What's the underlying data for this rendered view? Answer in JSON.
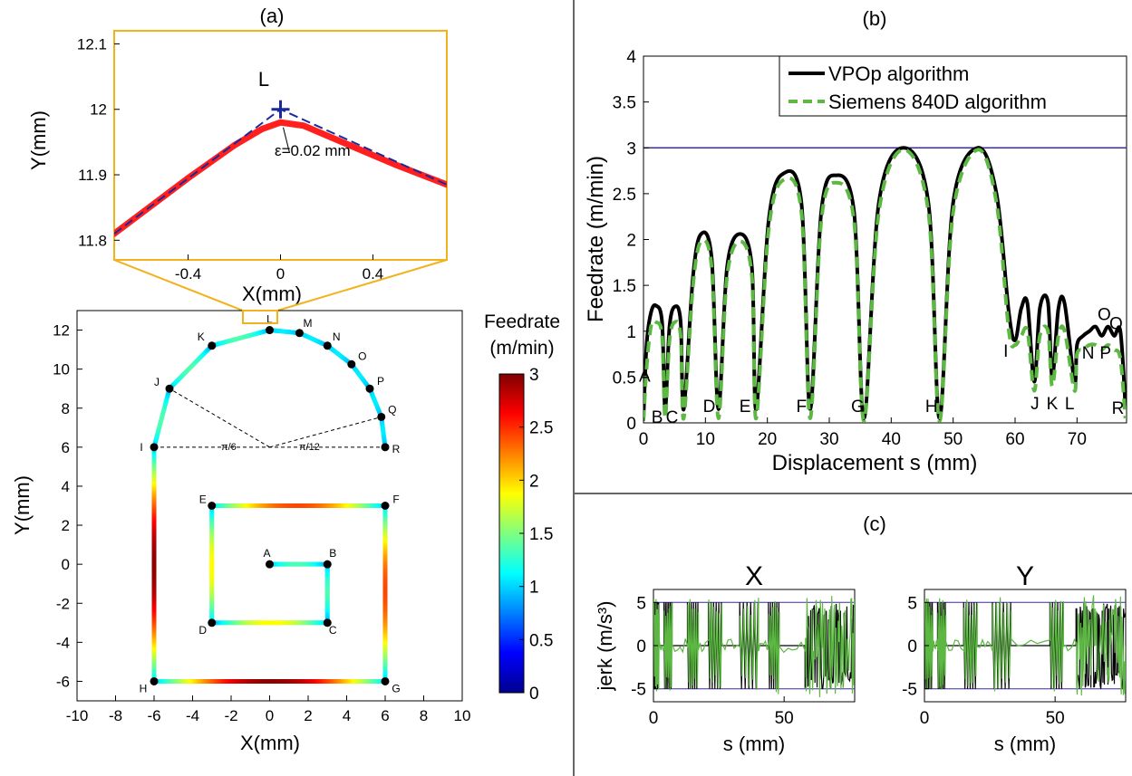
{
  "panels": {
    "a": "(a)",
    "b": "(b)",
    "c": "(c)"
  },
  "colors": {
    "colormap": [
      "#00008f",
      "#0000ff",
      "#0080ff",
      "#00ffff",
      "#80ff80",
      "#ffff00",
      "#ff8000",
      "#ff0000",
      "#800000"
    ],
    "path_hi": "#8b3a3a",
    "vpop": "#000000",
    "siemens": "#5cb843",
    "limit": "#3b2f8f",
    "zoom_box": "#f2b21d",
    "mark": "#1b2a9a",
    "red": "#ff1f1f"
  },
  "chart_data": [
    {
      "id": "a_zoom",
      "type": "line",
      "xlabel": "X(mm)",
      "ylabel": "Y(mm)",
      "xlim": [
        -0.72,
        0.72
      ],
      "ylim": [
        11.77,
        12.12
      ],
      "xticks": [
        "-0.4",
        "0",
        "0.4"
      ],
      "xtick_values": [
        -0.4,
        0,
        0.4
      ],
      "yticks": [
        "11.8",
        "11.9",
        "12",
        "12.1"
      ],
      "ytick_values": [
        11.8,
        11.9,
        12.0,
        12.1
      ],
      "point_label": "L",
      "point": [
        0,
        12.0
      ],
      "annotation": "ε=0.02 mm",
      "series": [
        {
          "role": "programmed",
          "x": [
            -0.72,
            0,
            0.72
          ],
          "y": [
            11.81,
            12.0,
            11.885
          ]
        },
        {
          "role": "smoothed",
          "x": [
            -0.72,
            -0.4,
            -0.2,
            -0.08,
            0,
            0.1,
            0.3,
            0.5,
            0.72
          ],
          "y": [
            11.81,
            11.895,
            11.945,
            11.97,
            11.98,
            11.975,
            11.945,
            11.915,
            11.885
          ]
        }
      ]
    },
    {
      "id": "a_path",
      "type": "scatter",
      "xlabel": "X(mm)",
      "ylabel": "Y(mm)",
      "xlim": [
        -10,
        10
      ],
      "ylim": [
        -7,
        13
      ],
      "xticks": [
        "-10",
        "-8",
        "-6",
        "-4",
        "-2",
        "0",
        "2",
        "4",
        "6",
        "8",
        "10"
      ],
      "xtick_values": [
        -10,
        -8,
        -6,
        -4,
        -2,
        0,
        2,
        4,
        6,
        8,
        10
      ],
      "yticks": [
        "12",
        "10",
        "8",
        "6",
        "4",
        "2",
        "0",
        "-2",
        "-4",
        "-6"
      ],
      "ytick_values": [
        12,
        10,
        8,
        6,
        4,
        2,
        0,
        -2,
        -4,
        -6
      ],
      "points": [
        {
          "label": "A",
          "x": 0,
          "y": 0,
          "v": 0.9
        },
        {
          "label": "B",
          "x": 3,
          "y": 0,
          "v": 0.9
        },
        {
          "label": "C",
          "x": 3,
          "y": -3,
          "v": 0.9
        },
        {
          "label": "D",
          "x": -3,
          "y": -3,
          "v": 1.0
        },
        {
          "label": "E",
          "x": -3,
          "y": 3,
          "v": 1.0
        },
        {
          "label": "F",
          "x": 6,
          "y": 3,
          "v": 1.0
        },
        {
          "label": "G",
          "x": 6,
          "y": -6,
          "v": 1.0
        },
        {
          "label": "H",
          "x": -6,
          "y": -6,
          "v": 1.0
        },
        {
          "label": "I",
          "x": -6,
          "y": 6,
          "v": 0.9
        },
        {
          "label": "J",
          "x": -5.2,
          "y": 9.0,
          "v": 0.9
        },
        {
          "label": "K",
          "x": -3.0,
          "y": 11.2,
          "v": 0.9
        },
        {
          "label": "L",
          "x": 0,
          "y": 12.0,
          "v": 0.9
        },
        {
          "label": "M",
          "x": 1.55,
          "y": 11.85,
          "v": 0.9
        },
        {
          "label": "N",
          "x": 3.0,
          "y": 11.2,
          "v": 0.9
        },
        {
          "label": "O",
          "x": 4.25,
          "y": 10.25,
          "v": 0.9
        },
        {
          "label": "P",
          "x": 5.2,
          "y": 9.0,
          "v": 0.9
        },
        {
          "label": "Q",
          "x": 5.8,
          "y": 7.55,
          "v": 0.9
        },
        {
          "label": "R",
          "x": 6,
          "y": 6,
          "v": 0.9
        }
      ],
      "angle_labels": [
        "π/6",
        "π/12"
      ],
      "colorbar": {
        "title_line1": "Feedrate",
        "title_line2": "(m/min)",
        "ticks": [
          "3",
          "2.5",
          "2",
          "1.5",
          "1",
          "0.5",
          "0"
        ],
        "tick_values": [
          3,
          2.5,
          2,
          1.5,
          1,
          0.5,
          0
        ],
        "range": [
          0,
          3
        ]
      }
    },
    {
      "id": "b",
      "type": "line",
      "xlabel": "Displacement s (mm)",
      "ylabel": "Feedrate (m/min)",
      "xlim": [
        0,
        78
      ],
      "ylim": [
        0,
        4
      ],
      "xticks": [
        "0",
        "10",
        "20",
        "30",
        "40",
        "50",
        "60",
        "70"
      ],
      "xtick_values": [
        0,
        10,
        20,
        30,
        40,
        50,
        60,
        70
      ],
      "yticks": [
        "4",
        "3.5",
        "3",
        "2.5",
        "2",
        "1.5",
        "1",
        "0.5",
        "0"
      ],
      "ytick_values": [
        4,
        3.5,
        3,
        2.5,
        2,
        1.5,
        1,
        0.5,
        0
      ],
      "limit_line": 3,
      "legend": {
        "position": "top-right"
      },
      "series": [
        {
          "name": "VPOp algorithm",
          "style": "solid",
          "x": [
            0,
            0.5,
            1.2,
            2.0,
            3.0,
            3.5,
            4.2,
            5.1,
            6.0,
            6.5,
            8.0,
            9.3,
            11.0,
            12.1,
            13.5,
            15.6,
            17.5,
            18.2,
            20.2,
            22.6,
            25.5,
            26.9,
            28.7,
            31.0,
            34.0,
            35.6,
            38.0,
            42.0,
            46.0,
            47.8,
            50.0,
            54.0,
            57.0,
            59.0,
            60.0,
            61.0,
            62.0,
            63.1,
            64.0,
            65.3,
            66.0,
            67.0,
            68.0,
            69.6,
            70.0,
            71.0,
            72.0,
            73.0,
            74.0,
            75.0,
            76.0,
            77.0,
            77.8
          ],
          "y": [
            0.05,
            0.85,
            1.2,
            1.28,
            1.1,
            0.15,
            1.05,
            1.27,
            1.1,
            0.15,
            1.6,
            2.06,
            1.8,
            0.15,
            1.7,
            2.06,
            1.7,
            0.15,
            2.2,
            2.72,
            2.4,
            0.15,
            2.3,
            2.7,
            2.3,
            0.05,
            2.4,
            3.0,
            2.4,
            0.05,
            2.4,
            3.0,
            2.5,
            1.2,
            0.9,
            1.25,
            1.3,
            0.45,
            1.25,
            1.32,
            0.5,
            1.25,
            1.3,
            0.45,
            0.85,
            0.95,
            1.0,
            1.05,
            0.95,
            1.05,
            0.95,
            1.0,
            0.2
          ]
        },
        {
          "name": "Siemens 840D algorithm",
          "style": "dashed",
          "x": [
            0,
            0.5,
            1.2,
            2.0,
            3.0,
            3.5,
            4.2,
            5.1,
            6.0,
            6.5,
            8.0,
            9.3,
            11.0,
            12.1,
            13.5,
            15.6,
            17.5,
            18.2,
            20.2,
            22.6,
            25.5,
            26.9,
            28.7,
            31.0,
            34.0,
            35.6,
            38.0,
            42.0,
            46.0,
            47.8,
            50.0,
            54.0,
            57.0,
            59.0,
            60.0,
            61.0,
            62.0,
            63.1,
            64.0,
            65.3,
            66.0,
            67.0,
            68.0,
            69.6,
            70.0,
            71.0,
            72.0,
            73.0,
            74.0,
            75.0,
            76.0,
            77.0,
            77.8
          ],
          "y": [
            0.02,
            0.6,
            1.05,
            1.1,
            0.95,
            0.05,
            0.9,
            1.1,
            0.95,
            0.05,
            1.5,
            1.98,
            1.7,
            0.05,
            1.6,
            1.98,
            1.6,
            0.05,
            2.1,
            2.65,
            2.3,
            0.05,
            2.2,
            2.62,
            2.2,
            0.02,
            2.3,
            2.98,
            2.3,
            0.02,
            2.3,
            2.98,
            2.4,
            1.0,
            0.85,
            0.95,
            1.0,
            0.35,
            0.95,
            1.0,
            0.4,
            0.95,
            1.0,
            0.35,
            0.75,
            0.8,
            0.85,
            0.85,
            0.8,
            0.85,
            0.8,
            0.7,
            0.05
          ]
        }
      ],
      "point_labels": [
        {
          "label": "A",
          "x": 0.2,
          "y": 0.45
        },
        {
          "label": "B",
          "x": 2.2,
          "y": 0.0
        },
        {
          "label": "C",
          "x": 4.6,
          "y": 0.0
        },
        {
          "label": "D",
          "x": 10.6,
          "y": 0.12
        },
        {
          "label": "E",
          "x": 16.4,
          "y": 0.12
        },
        {
          "label": "F",
          "x": 25.5,
          "y": 0.12
        },
        {
          "label": "G",
          "x": 34.6,
          "y": 0.12
        },
        {
          "label": "H",
          "x": 46.5,
          "y": 0.12
        },
        {
          "label": "I",
          "x": 58.5,
          "y": 0.72
        },
        {
          "label": "J",
          "x": 63.2,
          "y": 0.15
        },
        {
          "label": "K",
          "x": 66.0,
          "y": 0.15
        },
        {
          "label": "L",
          "x": 68.8,
          "y": 0.15
        },
        {
          "label": "N",
          "x": 71.8,
          "y": 0.7
        },
        {
          "label": "P",
          "x": 74.6,
          "y": 0.7
        },
        {
          "label": "O",
          "x": 74.4,
          "y": 1.12
        },
        {
          "label": "Q",
          "x": 76.3,
          "y": 1.02
        },
        {
          "label": "R",
          "x": 76.6,
          "y": 0.1
        }
      ]
    },
    {
      "id": "c_x",
      "type": "line",
      "title": "X",
      "xlabel": "s (mm)",
      "ylabel": "jerk (m/s³)",
      "xlim": [
        0,
        77
      ],
      "ylim": [
        -6.5,
        6.5
      ],
      "xticks": [
        "0",
        "50"
      ],
      "xtick_values": [
        0,
        50
      ],
      "yticks": [
        "5",
        "0",
        "-5"
      ],
      "ytick_values": [
        5,
        0,
        -5
      ],
      "limit_lines": [
        5,
        -5
      ],
      "segments": [
        [
          0,
          2,
          "osc"
        ],
        [
          2,
          4,
          "flat"
        ],
        [
          4,
          7,
          "osc"
        ],
        [
          7,
          13,
          "flat"
        ],
        [
          13,
          17,
          "osc"
        ],
        [
          17,
          21,
          "flat"
        ],
        [
          21,
          26,
          "osc"
        ],
        [
          26,
          33,
          "flat"
        ],
        [
          33,
          40,
          "osc"
        ],
        [
          40,
          44,
          "flat"
        ],
        [
          44,
          48,
          "osc"
        ],
        [
          48,
          58,
          "flat"
        ],
        [
          58,
          77,
          "dense"
        ]
      ]
    },
    {
      "id": "c_y",
      "type": "line",
      "title": "Y",
      "xlabel": "s (mm)",
      "ylabel": "",
      "xlim": [
        0,
        77
      ],
      "ylim": [
        -6.5,
        6.5
      ],
      "xticks": [
        "0",
        "50"
      ],
      "xtick_values": [
        0,
        50
      ],
      "yticks": [
        "5",
        "0",
        "-5"
      ],
      "ytick_values": [
        5,
        0,
        -5
      ],
      "limit_lines": [
        5,
        -5
      ],
      "segments": [
        [
          0,
          3,
          "osc"
        ],
        [
          3,
          5,
          "flat"
        ],
        [
          5,
          8,
          "osc"
        ],
        [
          8,
          15,
          "flat"
        ],
        [
          15,
          20,
          "osc"
        ],
        [
          20,
          26,
          "flat"
        ],
        [
          26,
          33,
          "osc"
        ],
        [
          33,
          48,
          "flat"
        ],
        [
          48,
          53,
          "osc"
        ],
        [
          53,
          58,
          "flat"
        ],
        [
          58,
          77,
          "dense"
        ]
      ]
    }
  ]
}
